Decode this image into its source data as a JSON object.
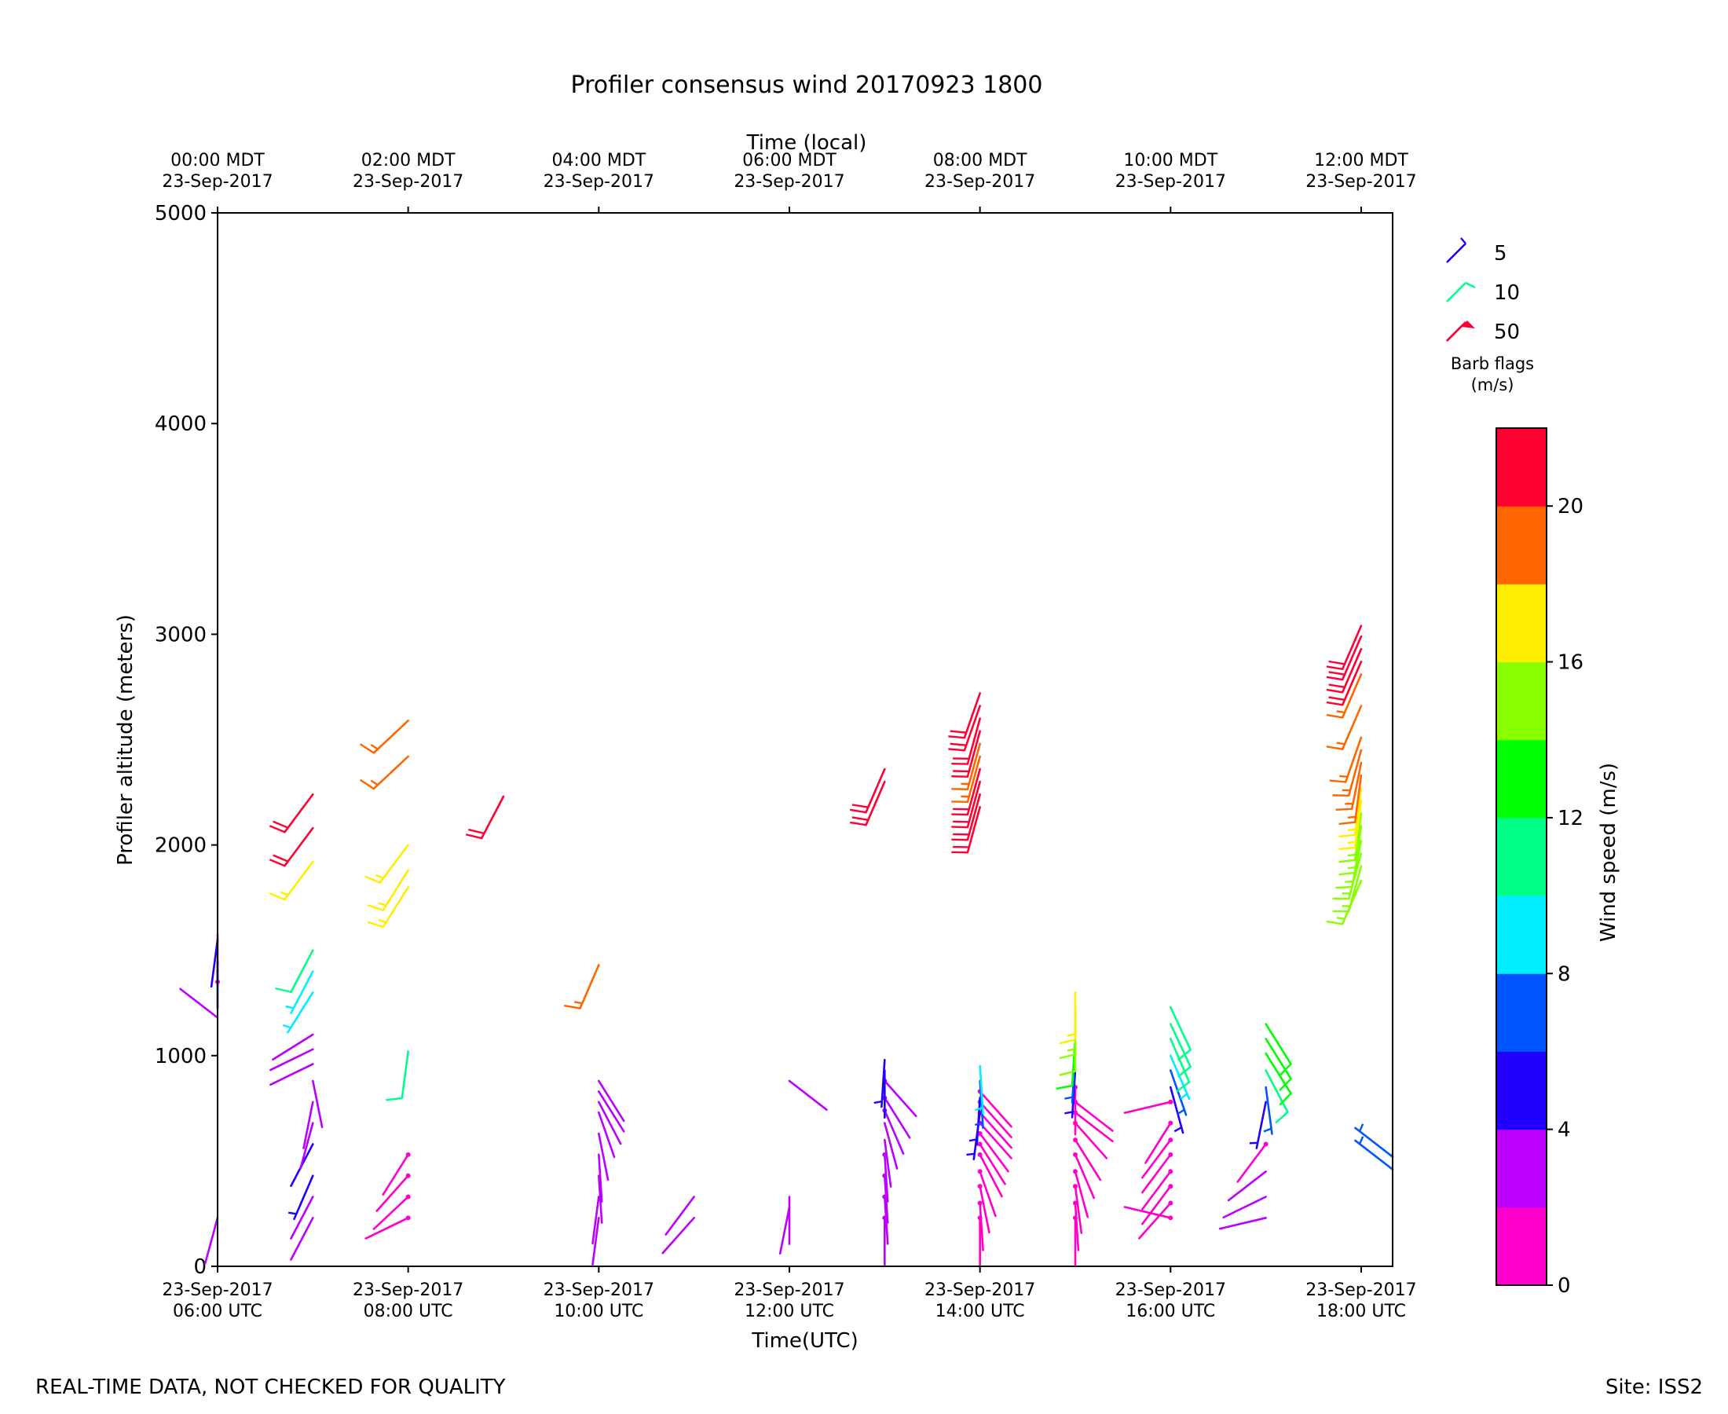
{
  "chart_data": {
    "type": "wind-barb time-height profile",
    "title": "Profiler consensus wind 20170923 1800",
    "xlabel": "Time(UTC)",
    "top_xlabel": "Time (local)",
    "ylabel": "Profiler altitude (meters)",
    "ylim": [
      0,
      5000
    ],
    "yticks": [
      "0",
      "1000",
      "2000",
      "3000",
      "4000",
      "5000"
    ],
    "xlim_hours_utc": [
      6.0,
      18.33
    ],
    "bottom_ticks": [
      {
        "hour": 6,
        "date": "23-Sep-2017",
        "time": "06:00 UTC"
      },
      {
        "hour": 8,
        "date": "23-Sep-2017",
        "time": "08:00 UTC"
      },
      {
        "hour": 10,
        "date": "23-Sep-2017",
        "time": "10:00 UTC"
      },
      {
        "hour": 12,
        "date": "23-Sep-2017",
        "time": "12:00 UTC"
      },
      {
        "hour": 14,
        "date": "23-Sep-2017",
        "time": "14:00 UTC"
      },
      {
        "hour": 16,
        "date": "23-Sep-2017",
        "time": "16:00 UTC"
      },
      {
        "hour": 18,
        "date": "23-Sep-2017",
        "time": "18:00 UTC"
      }
    ],
    "top_ticks": [
      {
        "hour": 6,
        "time": "00:00 MDT",
        "date": "23-Sep-2017"
      },
      {
        "hour": 8,
        "time": "02:00 MDT",
        "date": "23-Sep-2017"
      },
      {
        "hour": 10,
        "time": "04:00 MDT",
        "date": "23-Sep-2017"
      },
      {
        "hour": 12,
        "time": "06:00 MDT",
        "date": "23-Sep-2017"
      },
      {
        "hour": 14,
        "time": "08:00 MDT",
        "date": "23-Sep-2017"
      },
      {
        "hour": 16,
        "time": "10:00 MDT",
        "date": "23-Sep-2017"
      },
      {
        "hour": 18,
        "time": "12:00 MDT",
        "date": "23-Sep-2017"
      }
    ],
    "barb_legend": {
      "title": "Barb flags",
      "units": "(m/s)",
      "items": [
        {
          "label": "5",
          "color": "#2200ff"
        },
        {
          "label": "10",
          "color": "#00ff88"
        },
        {
          "label": "50",
          "color": "#ff0033"
        }
      ]
    },
    "colorbar": {
      "label": "Wind speed (m/s)",
      "range": [
        0,
        22
      ],
      "ticks": [
        "0",
        "4",
        "8",
        "12",
        "16",
        "20"
      ],
      "colors": [
        "#ff00cc",
        "#bb00ff",
        "#2200ff",
        "#0055ff",
        "#00eeff",
        "#00ff88",
        "#00ff00",
        "#88ff00",
        "#ffee00",
        "#ff6600",
        "#ff0033"
      ]
    },
    "barb_shaft_units": {
      "hours": 0.38,
      "meters": 230
    },
    "profiles": [
      {
        "hour": 6.0,
        "barbs": [
          {
            "alt": 230,
            "speed": 3,
            "dir": 200
          },
          {
            "alt": 1180,
            "speed": 3,
            "dir": 300
          },
          {
            "alt": 1350,
            "speed": 1,
            "dir": 0
          },
          {
            "alt": 1450,
            "speed": 4,
            "dir": 180
          },
          {
            "alt": 1550,
            "speed": 4,
            "dir": 190
          }
        ]
      },
      {
        "hour": 7.0,
        "barbs": [
          {
            "alt": 1300,
            "speed": 8,
            "dir": 220
          },
          {
            "alt": 1400,
            "speed": 9,
            "dir": 215
          },
          {
            "alt": 1500,
            "speed": 11,
            "dir": 215
          },
          {
            "alt": 1920,
            "speed": 17,
            "dir": 225
          },
          {
            "alt": 2080,
            "speed": 21,
            "dir": 225
          },
          {
            "alt": 2240,
            "speed": 21,
            "dir": 225
          }
        ]
      },
      {
        "hour": 7.0,
        "barbs": [
          {
            "alt": 230,
            "speed": 3,
            "dir": 215
          },
          {
            "alt": 330,
            "speed": 3,
            "dir": 215
          },
          {
            "alt": 430,
            "speed": 5,
            "dir": 210
          },
          {
            "alt": 580,
            "speed": 4,
            "dir": 215
          },
          {
            "alt": 680,
            "speed": 3,
            "dir": 200
          },
          {
            "alt": 780,
            "speed": 3,
            "dir": 195
          },
          {
            "alt": 880,
            "speed": 3,
            "dir": 165
          },
          {
            "alt": 960,
            "speed": 3,
            "dir": 250
          },
          {
            "alt": 1030,
            "speed": 3,
            "dir": 250
          },
          {
            "alt": 1100,
            "speed": 3,
            "dir": 245
          }
        ]
      },
      {
        "hour": 8.0,
        "barbs": [
          {
            "alt": 230,
            "speed": 1,
            "dir": 250
          },
          {
            "alt": 330,
            "speed": 1,
            "dir": 235
          },
          {
            "alt": 430,
            "speed": 1,
            "dir": 230
          },
          {
            "alt": 530,
            "speed": 1,
            "dir": 220
          },
          {
            "alt": 1020,
            "speed": 11,
            "dir": 190
          },
          {
            "alt": 1800,
            "speed": 17,
            "dir": 220
          },
          {
            "alt": 1880,
            "speed": 17,
            "dir": 220
          },
          {
            "alt": 2000,
            "speed": 17,
            "dir": 225
          },
          {
            "alt": 2420,
            "speed": 19,
            "dir": 235
          },
          {
            "alt": 2590,
            "speed": 19,
            "dir": 235
          }
        ]
      },
      {
        "hour": 9.0,
        "barbs": [
          {
            "alt": 2230,
            "speed": 21,
            "dir": 215
          }
        ]
      },
      {
        "hour": 10.0,
        "barbs": [
          {
            "alt": 230,
            "speed": 3,
            "dir": 190
          },
          {
            "alt": 330,
            "speed": 3,
            "dir": 190
          },
          {
            "alt": 430,
            "speed": 3,
            "dir": 175
          },
          {
            "alt": 530,
            "speed": 3,
            "dir": 175
          },
          {
            "alt": 630,
            "speed": 3,
            "dir": 165
          },
          {
            "alt": 730,
            "speed": 3,
            "dir": 155
          },
          {
            "alt": 780,
            "speed": 3,
            "dir": 145
          },
          {
            "alt": 830,
            "speed": 3,
            "dir": 140
          },
          {
            "alt": 880,
            "speed": 3,
            "dir": 140
          },
          {
            "alt": 1430,
            "speed": 19,
            "dir": 210
          }
        ]
      },
      {
        "hour": 11.0,
        "barbs": [
          {
            "alt": 230,
            "speed": 3,
            "dir": 230
          },
          {
            "alt": 330,
            "speed": 3,
            "dir": 225
          }
        ]
      },
      {
        "hour": 12.0,
        "barbs": [
          {
            "alt": 280,
            "speed": 3,
            "dir": 195
          },
          {
            "alt": 330,
            "speed": 3,
            "dir": 180
          },
          {
            "alt": 880,
            "speed": 3,
            "dir": 120
          }
        ]
      },
      {
        "hour": 13.0,
        "barbs": [
          {
            "alt": 230,
            "speed": 2,
            "dir": 180
          },
          {
            "alt": 330,
            "speed": 2,
            "dir": 175
          },
          {
            "alt": 430,
            "speed": 2,
            "dir": 175
          },
          {
            "alt": 530,
            "speed": 2,
            "dir": 175
          },
          {
            "alt": 600,
            "speed": 3,
            "dir": 170
          },
          {
            "alt": 680,
            "speed": 3,
            "dir": 160
          },
          {
            "alt": 740,
            "speed": 2,
            "dir": 150
          },
          {
            "alt": 800,
            "speed": 2,
            "dir": 140
          },
          {
            "alt": 880,
            "speed": 2,
            "dir": 130
          },
          {
            "alt": 930,
            "speed": 4,
            "dir": 180
          },
          {
            "alt": 980,
            "speed": 5,
            "dir": 185
          },
          {
            "alt": 2300,
            "speed": 21,
            "dir": 210
          },
          {
            "alt": 2360,
            "speed": 21,
            "dir": 210
          }
        ]
      },
      {
        "hour": 14.0,
        "barbs": [
          {
            "alt": 230,
            "speed": 1,
            "dir": 180
          },
          {
            "alt": 300,
            "speed": 1,
            "dir": 175
          },
          {
            "alt": 380,
            "speed": 1,
            "dir": 165
          },
          {
            "alt": 450,
            "speed": 1,
            "dir": 155
          },
          {
            "alt": 530,
            "speed": 1,
            "dir": 145
          },
          {
            "alt": 580,
            "speed": 1,
            "dir": 140
          },
          {
            "alt": 630,
            "speed": 1,
            "dir": 135
          },
          {
            "alt": 680,
            "speed": 1,
            "dir": 130
          },
          {
            "alt": 730,
            "speed": 1,
            "dir": 130
          },
          {
            "alt": 780,
            "speed": 1,
            "dir": 130
          },
          {
            "alt": 830,
            "speed": 1,
            "dir": 130
          },
          {
            "alt": 730,
            "speed": 5,
            "dir": 190
          },
          {
            "alt": 800,
            "speed": 5,
            "dir": 185
          },
          {
            "alt": 880,
            "speed": 6,
            "dir": 175
          },
          {
            "alt": 950,
            "speed": 8,
            "dir": 175
          },
          {
            "alt": 2180,
            "speed": 20,
            "dir": 200
          },
          {
            "alt": 2240,
            "speed": 20,
            "dir": 200
          },
          {
            "alt": 2300,
            "speed": 20,
            "dir": 200
          },
          {
            "alt": 2360,
            "speed": 20,
            "dir": 200
          },
          {
            "alt": 2420,
            "speed": 19,
            "dir": 200
          },
          {
            "alt": 2480,
            "speed": 19,
            "dir": 200
          },
          {
            "alt": 2540,
            "speed": 20,
            "dir": 200
          },
          {
            "alt": 2600,
            "speed": 21,
            "dir": 200
          },
          {
            "alt": 2660,
            "speed": 21,
            "dir": 205
          },
          {
            "alt": 2720,
            "speed": 21,
            "dir": 205
          }
        ]
      },
      {
        "hour": 15.0,
        "barbs": [
          {
            "alt": 230,
            "speed": 1,
            "dir": 180
          },
          {
            "alt": 300,
            "speed": 1,
            "dir": 175
          },
          {
            "alt": 380,
            "speed": 1,
            "dir": 170
          },
          {
            "alt": 450,
            "speed": 1,
            "dir": 160
          },
          {
            "alt": 530,
            "speed": 1,
            "dir": 150
          },
          {
            "alt": 600,
            "speed": 1,
            "dir": 140
          },
          {
            "alt": 680,
            "speed": 1,
            "dir": 130
          },
          {
            "alt": 730,
            "speed": 1,
            "dir": 120
          },
          {
            "alt": 780,
            "speed": 1,
            "dir": 120
          },
          {
            "alt": 850,
            "speed": 1,
            "dir": 180
          },
          {
            "alt": 930,
            "speed": 5,
            "dir": 185
          },
          {
            "alt": 1000,
            "speed": 6,
            "dir": 185
          },
          {
            "alt": 1080,
            "speed": 12,
            "dir": 185
          },
          {
            "alt": 1150,
            "speed": 14,
            "dir": 180
          },
          {
            "alt": 1230,
            "speed": 15,
            "dir": 180
          },
          {
            "alt": 1300,
            "speed": 17,
            "dir": 180
          }
        ]
      },
      {
        "hour": 16.0,
        "barbs": [
          {
            "alt": 230,
            "speed": 1,
            "dir": 280
          },
          {
            "alt": 300,
            "speed": 1,
            "dir": 230
          },
          {
            "alt": 380,
            "speed": 1,
            "dir": 225
          },
          {
            "alt": 450,
            "speed": 1,
            "dir": 225
          },
          {
            "alt": 530,
            "speed": 1,
            "dir": 225
          },
          {
            "alt": 600,
            "speed": 1,
            "dir": 225
          },
          {
            "alt": 680,
            "speed": 1,
            "dir": 220
          },
          {
            "alt": 780,
            "speed": 1,
            "dir": 260
          },
          {
            "alt": 850,
            "speed": 5,
            "dir": 160
          },
          {
            "alt": 930,
            "speed": 6,
            "dir": 155
          },
          {
            "alt": 1000,
            "speed": 9,
            "dir": 150
          },
          {
            "alt": 1080,
            "speed": 11,
            "dir": 150
          },
          {
            "alt": 1150,
            "speed": 11,
            "dir": 148
          },
          {
            "alt": 1230,
            "speed": 11,
            "dir": 148
          }
        ]
      },
      {
        "hour": 17.0,
        "barbs": [
          {
            "alt": 230,
            "speed": 3,
            "dir": 260
          },
          {
            "alt": 330,
            "speed": 3,
            "dir": 250
          },
          {
            "alt": 450,
            "speed": 3,
            "dir": 240
          },
          {
            "alt": 580,
            "speed": 1,
            "dir": 225
          },
          {
            "alt": 780,
            "speed": 5,
            "dir": 195
          },
          {
            "alt": 850,
            "speed": 6,
            "dir": 170
          },
          {
            "alt": 930,
            "speed": 10,
            "dir": 145
          },
          {
            "alt": 1010,
            "speed": 13,
            "dir": 140
          },
          {
            "alt": 1080,
            "speed": 13,
            "dir": 140
          },
          {
            "alt": 1150,
            "speed": 13,
            "dir": 140
          }
        ]
      },
      {
        "hour": 18.0,
        "barbs": [
          {
            "alt": 1830,
            "speed": 15,
            "dir": 210
          },
          {
            "alt": 1900,
            "speed": 15,
            "dir": 200
          },
          {
            "alt": 1960,
            "speed": 15,
            "dir": 200
          },
          {
            "alt": 2020,
            "speed": 15,
            "dir": 195
          },
          {
            "alt": 2090,
            "speed": 15,
            "dir": 190
          },
          {
            "alt": 2150,
            "speed": 15,
            "dir": 190
          },
          {
            "alt": 2210,
            "speed": 16,
            "dir": 190
          },
          {
            "alt": 2270,
            "speed": 17,
            "dir": 190
          },
          {
            "alt": 2330,
            "speed": 18,
            "dir": 190
          },
          {
            "alt": 2390,
            "speed": 19,
            "dir": 195
          },
          {
            "alt": 2450,
            "speed": 19,
            "dir": 200
          },
          {
            "alt": 2510,
            "speed": 19,
            "dir": 205
          },
          {
            "alt": 2660,
            "speed": 19,
            "dir": 210
          },
          {
            "alt": 2810,
            "speed": 19,
            "dir": 210
          },
          {
            "alt": 2870,
            "speed": 20,
            "dir": 210
          },
          {
            "alt": 2930,
            "speed": 21,
            "dir": 210
          },
          {
            "alt": 2990,
            "speed": 21,
            "dir": 210
          },
          {
            "alt": 3040,
            "speed": 21,
            "dir": 210
          }
        ]
      },
      {
        "hour": 18.33,
        "barbs": [
          {
            "alt": 460,
            "speed": 7,
            "dir": 300
          },
          {
            "alt": 520,
            "speed": 7,
            "dir": 300
          }
        ]
      }
    ]
  },
  "footer": {
    "disclaimer": "REAL-TIME DATA, NOT CHECKED FOR QUALITY",
    "site": "Site: ISS2"
  }
}
